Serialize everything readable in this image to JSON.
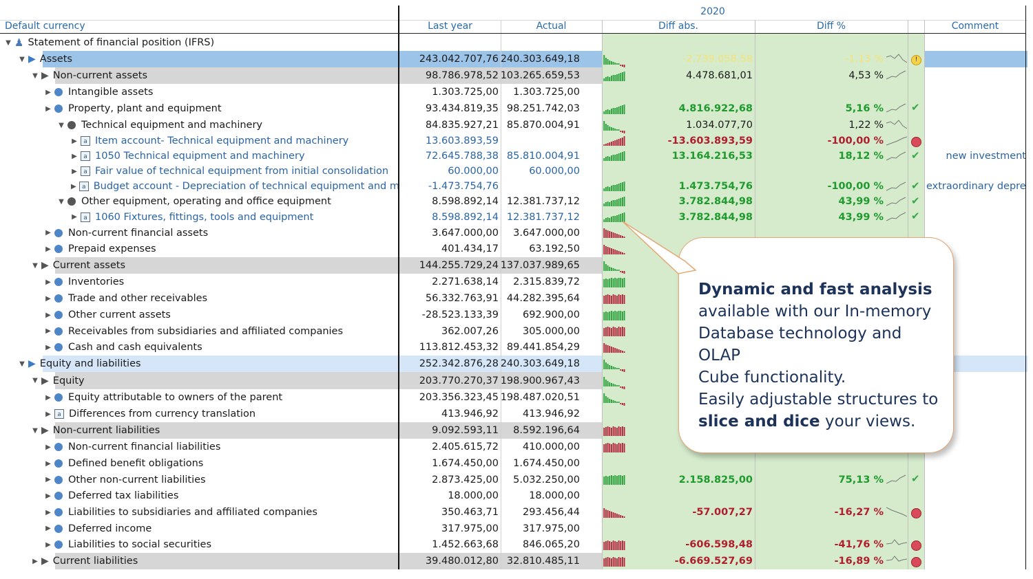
{
  "header": {
    "year": "2020",
    "first_col": "Default currency",
    "columns": [
      "Last year",
      "Actual",
      "Diff abs.",
      "Diff %",
      "",
      "Comment"
    ]
  },
  "rows": [
    {
      "label": "Statement of financial position (IFRS)",
      "level": 0,
      "type": "root",
      "bg": "none",
      "last": "",
      "actual": "",
      "diff": "",
      "pct": "",
      "color": "",
      "bold": false,
      "spark": "",
      "status": "",
      "comment": ""
    },
    {
      "label": "Assets",
      "level": 1,
      "type": "play",
      "bg": "blue",
      "last": "243.042.707,76",
      "actual": "240.303.649,18",
      "diff": "-2.739.058,58",
      "pct": "-1,13 %",
      "color": "yellow",
      "bold": false,
      "spark": "mixdown",
      "status": "warn",
      "comment": ""
    },
    {
      "label": "Non-current assets",
      "level": 2,
      "type": "play",
      "bg": "gray",
      "last": "98.786.978,52",
      "actual": "103.265.659,53",
      "diff": "4.478.681,01",
      "pct": "4,53 %",
      "color": "plain",
      "bold": false,
      "spark": "up",
      "status": "",
      "comment": ""
    },
    {
      "label": "Intangible assets",
      "level": 3,
      "type": "dot",
      "bg": "none",
      "last": "1.303.725,00",
      "actual": "1.303.725,00",
      "diff": "",
      "pct": "",
      "color": "",
      "bold": false,
      "spark": "",
      "status": "",
      "comment": ""
    },
    {
      "label": "Property, plant and equipment",
      "level": 3,
      "type": "dot",
      "bg": "none",
      "last": "93.434.819,35",
      "actual": "98.251.742,03",
      "diff": "4.816.922,68",
      "pct": "5,16 %",
      "color": "green",
      "bold": true,
      "spark": "up",
      "status": "ok",
      "comment": ""
    },
    {
      "label": "Technical equipment and machinery",
      "level": 4,
      "type": "graydot",
      "bg": "none",
      "last": "84.835.927,21",
      "actual": "85.870.004,91",
      "diff": "1.034.077,70",
      "pct": "1,22 %",
      "color": "plain",
      "bold": false,
      "spark": "mixdown",
      "status": "",
      "comment": ""
    },
    {
      "label": "Item account- Technical equipment and machinery",
      "level": 5,
      "type": "acct",
      "bg": "none",
      "last": "13.603.893,59",
      "actual": "",
      "diff": "-13.603.893,59",
      "pct": "-100,00 %",
      "color": "red",
      "bold": true,
      "spark": "redup",
      "status": "bad",
      "comment": "",
      "link": true
    },
    {
      "label": "1050 Technical equipment and machinery",
      "level": 5,
      "type": "acct",
      "bg": "none",
      "last": "72.645.788,38",
      "actual": "85.810.004,91",
      "diff": "13.164.216,53",
      "pct": "18,12 %",
      "color": "green",
      "bold": true,
      "spark": "up",
      "status": "ok",
      "comment": "new investment",
      "link": true
    },
    {
      "label": "Fair value of technical equipment from initial consolidation",
      "level": 5,
      "type": "acct",
      "bg": "none",
      "last": "60.000,00",
      "actual": "60.000,00",
      "diff": "",
      "pct": "",
      "color": "",
      "bold": false,
      "spark": "",
      "status": "",
      "comment": "",
      "link": true
    },
    {
      "label": "Budget account - Depreciation of technical equipment and mac...",
      "level": 5,
      "type": "acct",
      "bg": "none",
      "last": "-1.473.754,76",
      "actual": "",
      "diff": "1.473.754,76",
      "pct": "-100,00 %",
      "color": "green",
      "bold": true,
      "spark": "up",
      "status": "ok",
      "comment": "extraordinary depre...",
      "link": true
    },
    {
      "label": "Other equipment, operating and office equipment",
      "level": 4,
      "type": "graydot",
      "bg": "none",
      "last": "8.598.892,14",
      "actual": "12.381.737,12",
      "diff": "3.782.844,98",
      "pct": "43,99 %",
      "color": "green",
      "bold": true,
      "spark": "up",
      "status": "ok",
      "comment": ""
    },
    {
      "label": "1060 Fixtures, fittings, tools and equipment",
      "level": 5,
      "type": "acct",
      "bg": "none",
      "last": "8.598.892,14",
      "actual": "12.381.737,12",
      "diff": "3.782.844,98",
      "pct": "43,99 %",
      "color": "green",
      "bold": true,
      "spark": "up",
      "status": "ok",
      "comment": "",
      "link": true
    },
    {
      "label": "Non-current financial assets",
      "level": 3,
      "type": "dot",
      "bg": "none",
      "last": "3.647.000,00",
      "actual": "3.647.000,00",
      "diff": "",
      "pct": "",
      "color": "",
      "bold": false,
      "spark": "reddown",
      "status": "",
      "comment": ""
    },
    {
      "label": "Prepaid expenses",
      "level": 3,
      "type": "dot",
      "bg": "none",
      "last": "401.434,17",
      "actual": "63.192,50",
      "diff": "",
      "pct": "",
      "color": "",
      "bold": false,
      "spark": "reddown",
      "status": "",
      "comment": ""
    },
    {
      "label": "Current assets",
      "level": 2,
      "type": "play",
      "bg": "gray",
      "last": "144.255.729,24",
      "actual": "137.037.989,65",
      "diff": "",
      "pct": "",
      "color": "",
      "bold": false,
      "spark": "mixdown",
      "status": "",
      "comment": ""
    },
    {
      "label": "Inventories",
      "level": 3,
      "type": "dot",
      "bg": "none",
      "last": "2.271.638,14",
      "actual": "2.315.839,72",
      "diff": "",
      "pct": "",
      "color": "",
      "bold": false,
      "spark": "greenflat",
      "status": "",
      "comment": ""
    },
    {
      "label": "Trade and other receivables",
      "level": 3,
      "type": "dot",
      "bg": "none",
      "last": "56.332.763,91",
      "actual": "44.282.395,64",
      "diff": "",
      "pct": "",
      "color": "",
      "bold": false,
      "spark": "redflat",
      "status": "",
      "comment": ""
    },
    {
      "label": "Other current assets",
      "level": 3,
      "type": "dot",
      "bg": "none",
      "last": "-28.523.133,39",
      "actual": "692.900,00",
      "diff": "",
      "pct": "",
      "color": "",
      "bold": false,
      "spark": "greenflat",
      "status": "",
      "comment": ""
    },
    {
      "label": "Receivables from subsidiaries and affiliated companies",
      "level": 3,
      "type": "dot",
      "bg": "none",
      "last": "362.007,26",
      "actual": "305.000,00",
      "diff": "",
      "pct": "",
      "color": "",
      "bold": false,
      "spark": "redflat",
      "status": "",
      "comment": ""
    },
    {
      "label": "Cash and cash equivalents",
      "level": 3,
      "type": "dot",
      "bg": "none",
      "last": "113.812.453,32",
      "actual": "89.441.854,29",
      "diff": "",
      "pct": "",
      "color": "",
      "bold": false,
      "spark": "reddown",
      "status": "",
      "comment": ""
    },
    {
      "label": "Equity and liabilities",
      "level": 1,
      "type": "play",
      "bg": "lightblue",
      "last": "252.342.876,28",
      "actual": "240.303.649,18",
      "diff": "",
      "pct": "",
      "color": "",
      "bold": false,
      "spark": "mixdown",
      "status": "",
      "comment": ""
    },
    {
      "label": "Equity",
      "level": 2,
      "type": "play",
      "bg": "gray",
      "last": "203.770.270,37",
      "actual": "198.900.967,43",
      "diff": "",
      "pct": "",
      "color": "",
      "bold": false,
      "spark": "mixdown",
      "status": "",
      "comment": ""
    },
    {
      "label": "Equity attributable to owners of the parent",
      "level": 3,
      "type": "dot",
      "bg": "none",
      "last": "203.356.323,45",
      "actual": "198.487.020,51",
      "diff": "",
      "pct": "",
      "color": "",
      "bold": false,
      "spark": "mixdown",
      "status": "",
      "comment": ""
    },
    {
      "label": "Differences from currency translation",
      "level": 3,
      "type": "acct",
      "bg": "none",
      "last": "413.946,92",
      "actual": "413.946,92",
      "diff": "",
      "pct": "",
      "color": "",
      "bold": false,
      "spark": "",
      "status": "",
      "comment": ""
    },
    {
      "label": "Non-current liabilities",
      "level": 2,
      "type": "play",
      "bg": "gray",
      "last": "9.092.593,11",
      "actual": "8.592.196,64",
      "diff": "",
      "pct": "",
      "color": "",
      "bold": false,
      "spark": "redflat",
      "status": "",
      "comment": ""
    },
    {
      "label": "Non-current financial liabilities",
      "level": 3,
      "type": "dot",
      "bg": "none",
      "last": "2.405.615,72",
      "actual": "410.000,00",
      "diff": "",
      "pct": "",
      "color": "",
      "bold": false,
      "spark": "redflat",
      "status": "",
      "comment": ""
    },
    {
      "label": "Defined benefit obligations",
      "level": 3,
      "type": "dot",
      "bg": "none",
      "last": "1.674.450,00",
      "actual": "1.674.450,00",
      "diff": "",
      "pct": "",
      "color": "",
      "bold": false,
      "spark": "",
      "status": "",
      "comment": ""
    },
    {
      "label": "Other non-current liabilities",
      "level": 3,
      "type": "dot",
      "bg": "none",
      "last": "2.873.425,00",
      "actual": "5.032.250,00",
      "diff": "2.158.825,00",
      "pct": "75,13 %",
      "color": "green",
      "bold": true,
      "spark": "greenflat",
      "status": "ok",
      "comment": ""
    },
    {
      "label": "Deferred tax liabilities",
      "level": 3,
      "type": "dot",
      "bg": "none",
      "last": "18.000,00",
      "actual": "18.000,00",
      "diff": "",
      "pct": "",
      "color": "",
      "bold": false,
      "spark": "",
      "status": "",
      "comment": ""
    },
    {
      "label": "Liabilities to subsidiaries and affiliated companies",
      "level": 3,
      "type": "dot",
      "bg": "none",
      "last": "350.463,71",
      "actual": "293.456,44",
      "diff": "-57.007,27",
      "pct": "-16,27 %",
      "color": "red",
      "bold": true,
      "spark": "reddown",
      "status": "bad",
      "comment": ""
    },
    {
      "label": "Deferred income",
      "level": 3,
      "type": "dot",
      "bg": "none",
      "last": "317.975,00",
      "actual": "317.975,00",
      "diff": "",
      "pct": "",
      "color": "",
      "bold": false,
      "spark": "",
      "status": "",
      "comment": ""
    },
    {
      "label": "Liabilities to social securities",
      "level": 3,
      "type": "dot",
      "bg": "none",
      "last": "1.452.663,68",
      "actual": "846.065,20",
      "diff": "-606.598,48",
      "pct": "-41,76 %",
      "color": "red",
      "bold": true,
      "spark": "redflat",
      "status": "bad",
      "comment": ""
    },
    {
      "label": "Current liabilities",
      "level": 2,
      "type": "play",
      "bg": "gray",
      "last": "39.480.012,80",
      "actual": "32.810.485,11",
      "diff": "-6.669.527,69",
      "pct": "-16,89 %",
      "color": "red",
      "bold": true,
      "spark": "redflat",
      "status": "bad",
      "comment": ""
    }
  ],
  "callout": {
    "line1_bold": "Dynamic and fast analysis",
    "line2": "available with our In-memory",
    "line3": "Database technology and OLAP",
    "line4": "Cube functionality.",
    "line5": "Easily adjustable structures to",
    "line6_bold": "slice and dice",
    "line6_rest": " your views."
  },
  "colors": {
    "green_text": "#1f9a2e",
    "red_text": "#b01e2e",
    "yellow_text": "#f4e27a",
    "link_text": "#2a64a6",
    "highlight_blue": "#9cc3e8",
    "light_blue": "#d4e6f7",
    "gray_row": "#d6d6d6",
    "diff_bg": "#d5ebcc"
  }
}
